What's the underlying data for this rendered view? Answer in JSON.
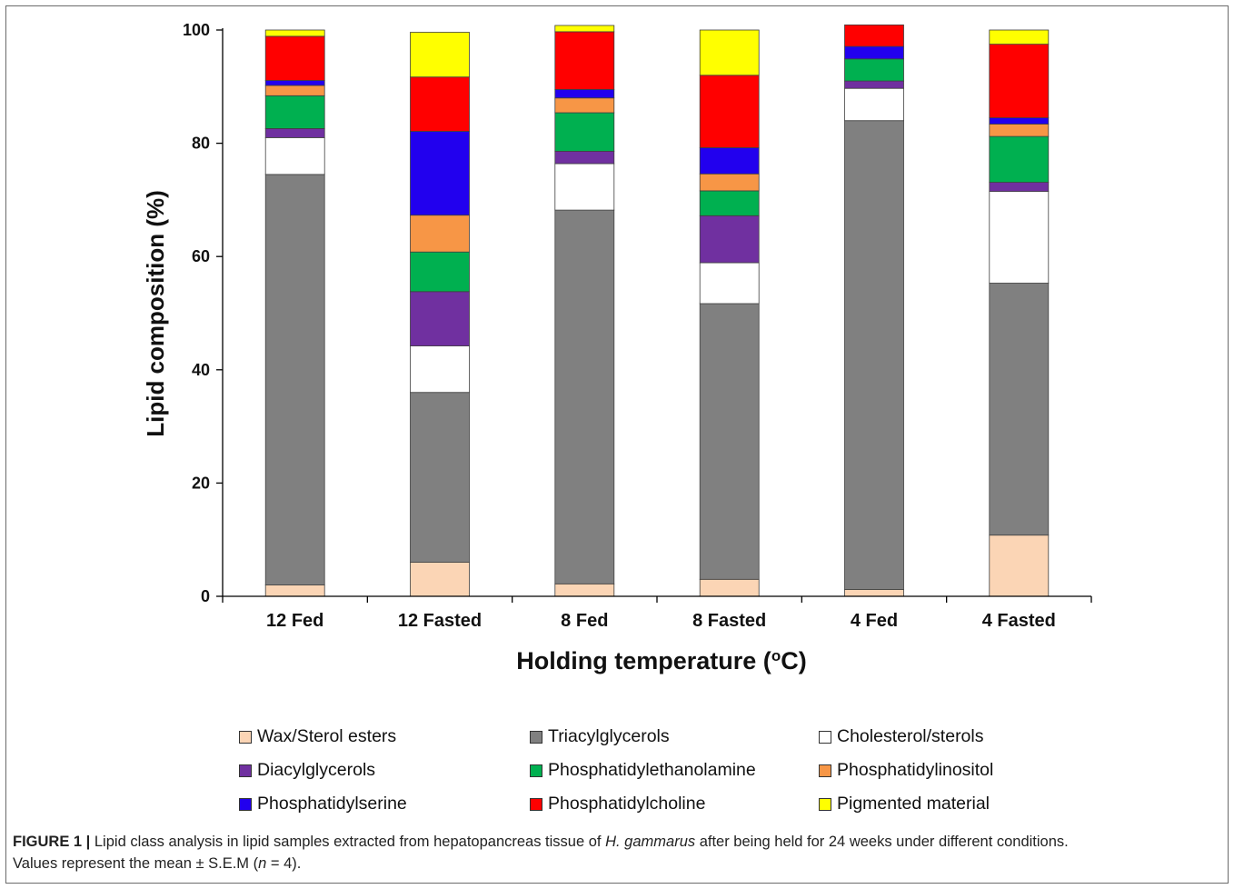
{
  "chart_data": {
    "type": "bar",
    "stacked": true,
    "title": "",
    "xlabel": "Holding temperature (",
    "xlabel_sup": "o",
    "xlabel_suffix": "C)",
    "ylabel": "Lipid composition (%)",
    "ylim": [
      0,
      100
    ],
    "yticks": [
      "0",
      "20",
      "40",
      "60",
      "80",
      "100"
    ],
    "grid": false,
    "legend_position": "bottom",
    "categories": [
      "12 Fed",
      "12 Fasted",
      "8 Fed",
      "8 Fasted",
      "4 Fed",
      "4 Fasted"
    ],
    "series": [
      {
        "name": "Wax/Sterol esters",
        "color": "#fbd5b5",
        "values": [
          2.0,
          6.0,
          2.2,
          3.0,
          1.2,
          10.8
        ]
      },
      {
        "name": "Triacylglycerols",
        "color": "#808080",
        "values": [
          72.5,
          30.0,
          66.0,
          48.7,
          82.8,
          44.5
        ]
      },
      {
        "name": "Cholesterol/sterols",
        "color": "#ffffff",
        "values": [
          6.5,
          8.2,
          8.2,
          7.2,
          5.7,
          16.2
        ]
      },
      {
        "name": "Diacylglycerols",
        "color": "#7030a0",
        "values": [
          1.6,
          9.6,
          2.2,
          8.3,
          1.3,
          1.6
        ]
      },
      {
        "name": "Phosphatidylethanolamine",
        "color": "#00b050",
        "values": [
          5.8,
          7.0,
          6.8,
          4.4,
          3.9,
          8.1
        ]
      },
      {
        "name": "Phosphatidylinositol",
        "color": "#f79646",
        "values": [
          1.8,
          6.5,
          2.6,
          3.0,
          0.0,
          2.2
        ]
      },
      {
        "name": "Phosphatidylserine",
        "color": "#2200ee",
        "values": [
          0.9,
          14.8,
          1.5,
          4.6,
          2.2,
          1.1
        ]
      },
      {
        "name": "Phosphatidylcholine",
        "color": "#ff0000",
        "values": [
          7.8,
          9.6,
          10.2,
          12.8,
          3.8,
          13.0
        ]
      },
      {
        "name": "Pigmented material",
        "color": "#ffff00",
        "values": [
          1.1,
          7.9,
          1.1,
          8.0,
          0.0,
          2.5
        ]
      }
    ]
  },
  "caption": {
    "label": "FIGURE 1 |",
    "text_before": " Lipid class analysis in lipid samples extracted from hepatopancreas tissue of ",
    "species": "H. gammarus",
    "text_after": " after being held for 24 weeks under different conditions.",
    "line2_before": "Values represent the mean ± S.E.M (",
    "n_symbol": "n",
    "line2_after": " = 4)."
  }
}
